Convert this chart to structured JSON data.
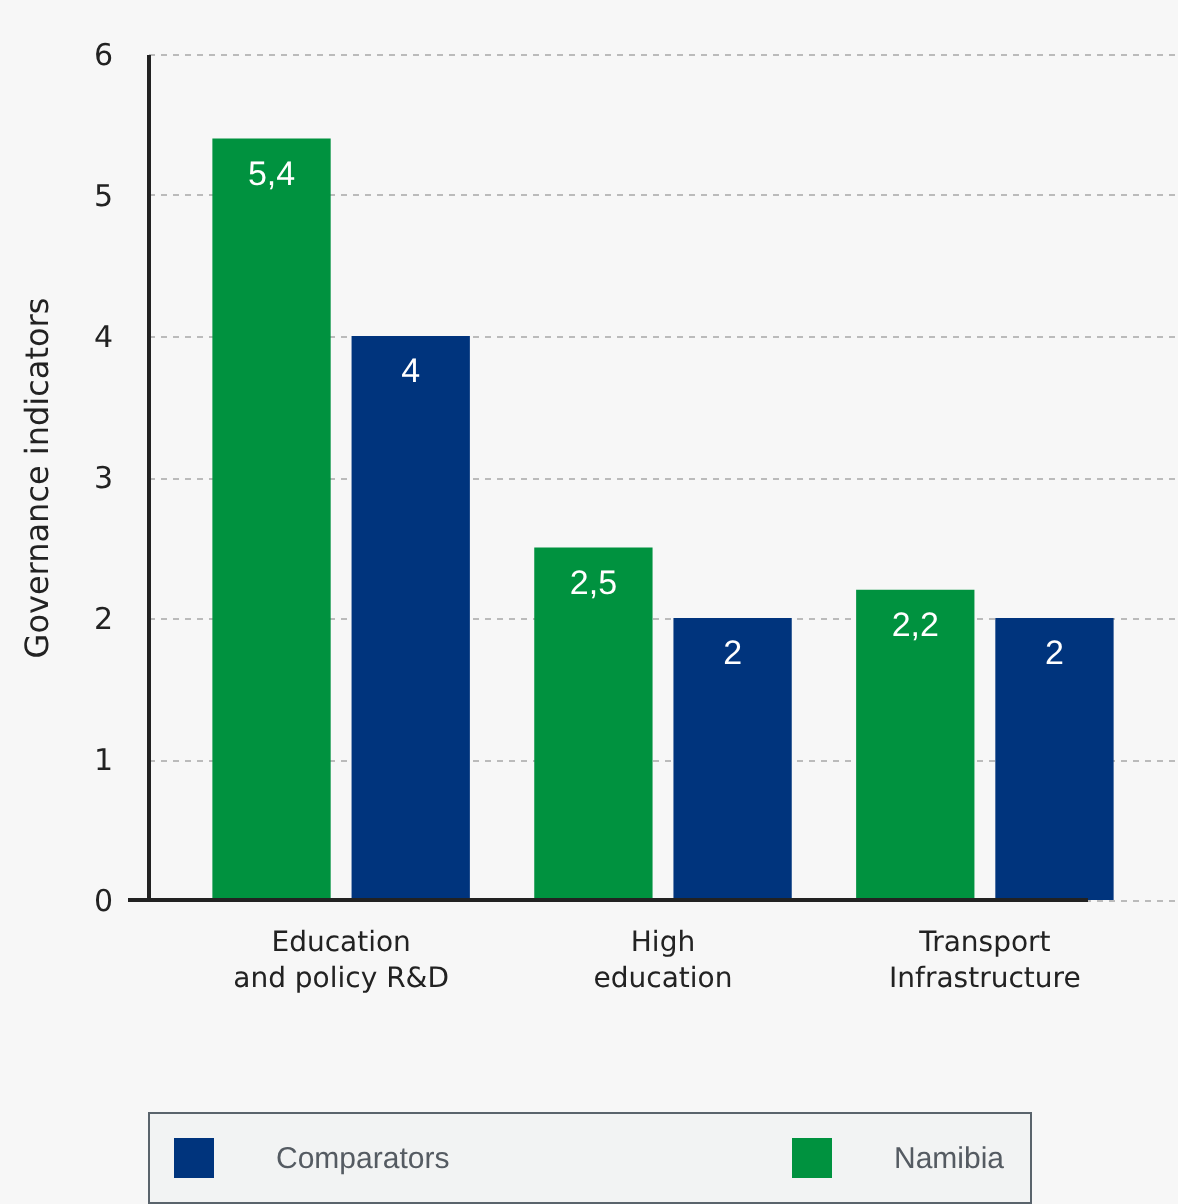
{
  "chart_data": {
    "type": "bar",
    "ylabel": "Governance indicators",
    "categories": [
      "Education\nand policy R&D",
      "High\neducation",
      "Transport\nInfrastructure"
    ],
    "series": [
      {
        "name": "Namibia",
        "color": "#00923f",
        "values": [
          5.4,
          2.5,
          2.2
        ],
        "value_labels": [
          "5,4",
          "2,5",
          "2,2"
        ]
      },
      {
        "name": "Comparators",
        "color": "#00347d",
        "values": [
          4,
          2,
          2
        ],
        "value_labels": [
          "4",
          "2",
          "2"
        ]
      }
    ],
    "ylim": [
      0,
      6
    ],
    "yticks": [
      0,
      1,
      2,
      3,
      4,
      5,
      6
    ],
    "grid": "y",
    "legend": "bottom"
  }
}
